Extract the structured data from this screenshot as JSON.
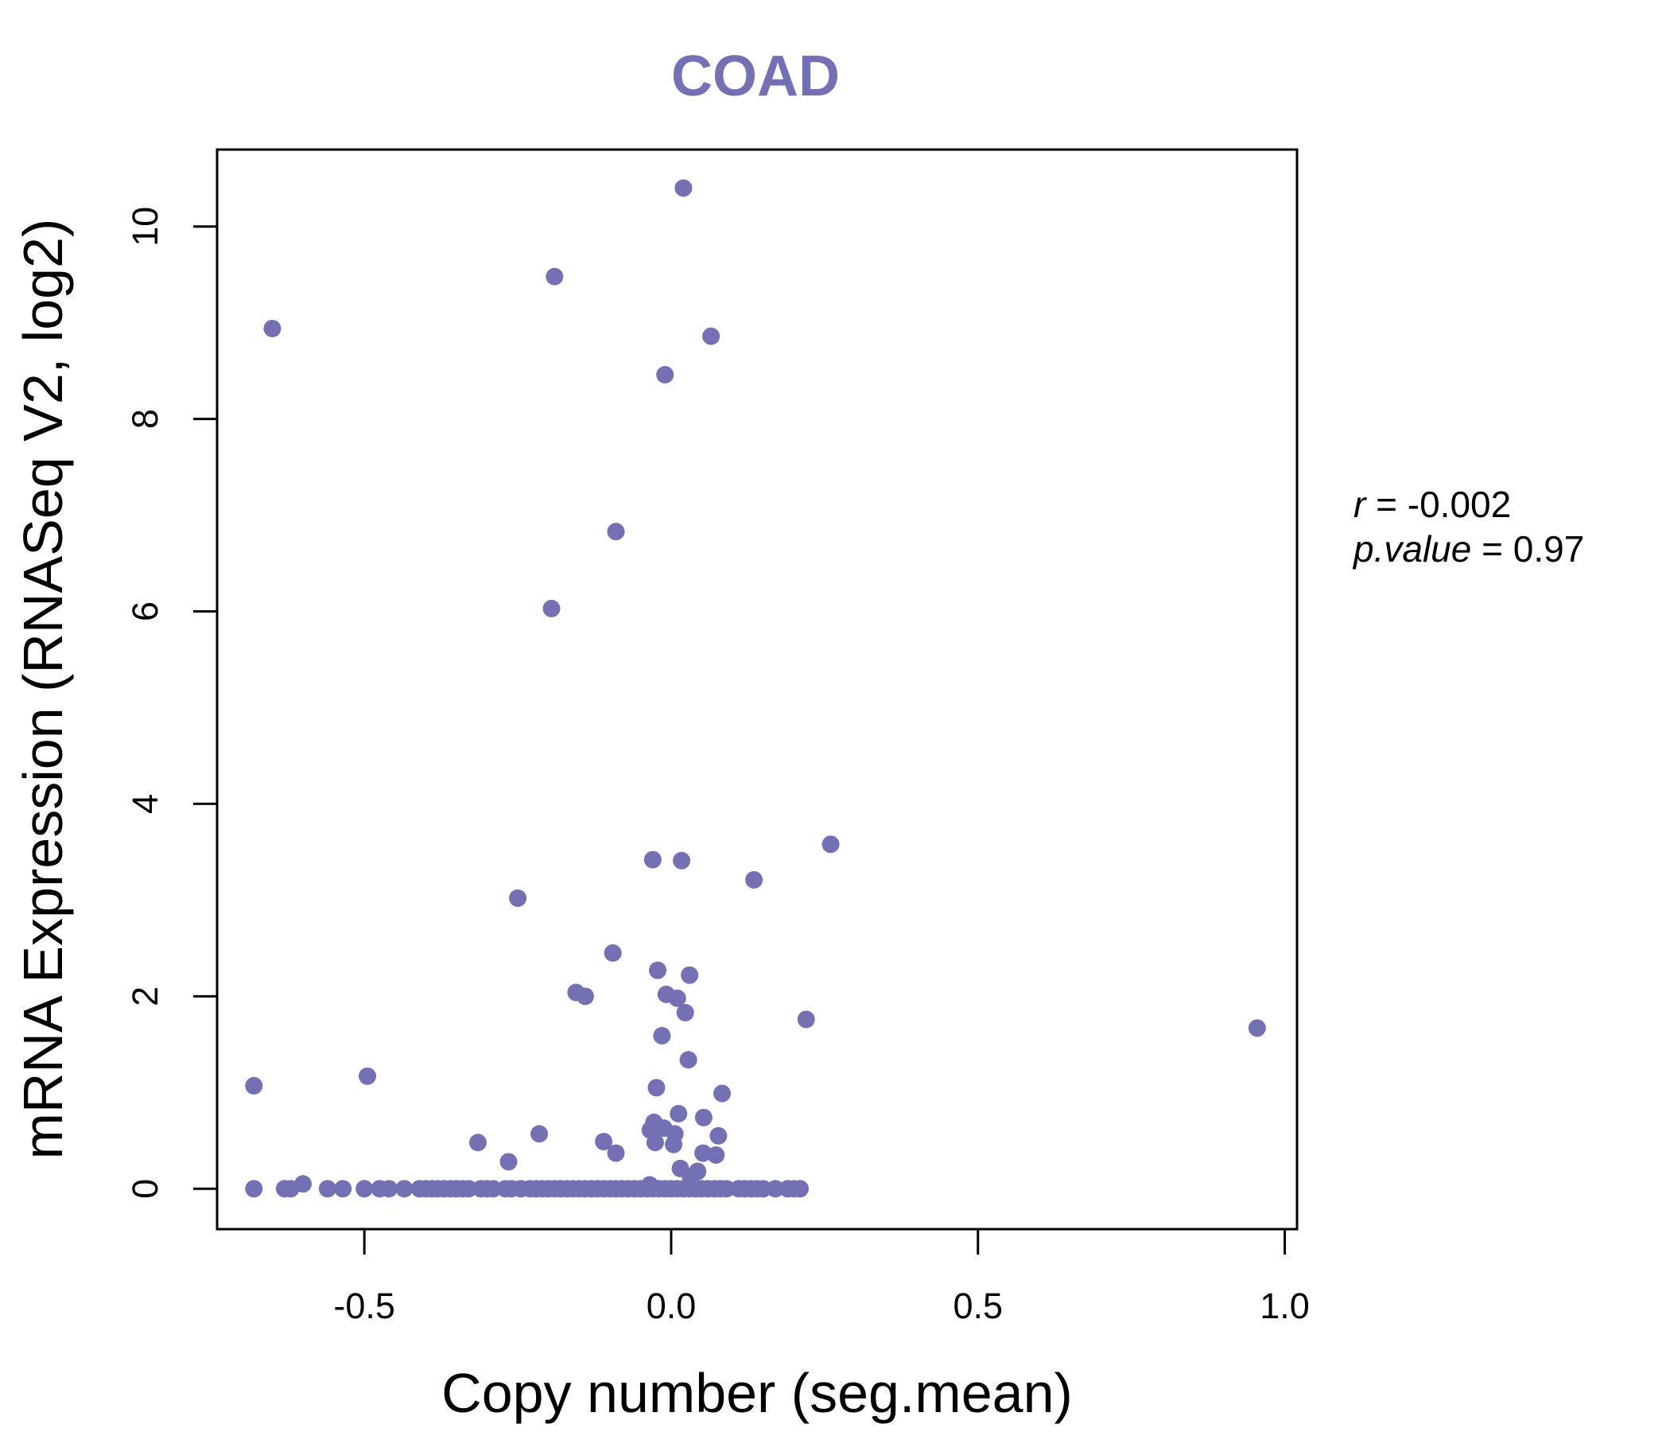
{
  "chart_data": {
    "type": "scatter",
    "title": "COAD",
    "xlabel": "Copy number (seg.mean)",
    "ylabel": "mRNA Expression (RNASeq V2, log2)",
    "xlim": [
      -0.74,
      1.02
    ],
    "ylim": [
      -0.42,
      10.8
    ],
    "x_ticks": [
      -0.5,
      0.0,
      0.5,
      1.0
    ],
    "x_tick_labels": [
      "-0.5",
      "0.0",
      "0.5",
      "1.0"
    ],
    "y_ticks": [
      0,
      2,
      4,
      6,
      8,
      10
    ],
    "y_tick_labels": [
      "0",
      "2",
      "4",
      "6",
      "8",
      "10"
    ],
    "point_color": "#7470b4",
    "stats": {
      "r_label": "r",
      "r_value": "-0.002",
      "p_label": "p.value",
      "p_value": "0.97"
    },
    "points": [
      {
        "x": 0.02,
        "y": 10.4
      },
      {
        "x": -0.19,
        "y": 9.48
      },
      {
        "x": -0.65,
        "y": 8.94
      },
      {
        "x": 0.065,
        "y": 8.86
      },
      {
        "x": -0.01,
        "y": 8.46
      },
      {
        "x": -0.09,
        "y": 6.83
      },
      {
        "x": -0.195,
        "y": 6.03
      },
      {
        "x": 0.26,
        "y": 3.58
      },
      {
        "x": -0.03,
        "y": 3.42
      },
      {
        "x": 0.017,
        "y": 3.41
      },
      {
        "x": 0.135,
        "y": 3.21
      },
      {
        "x": -0.25,
        "y": 3.02
      },
      {
        "x": -0.095,
        "y": 2.45
      },
      {
        "x": -0.022,
        "y": 2.27
      },
      {
        "x": 0.03,
        "y": 2.22
      },
      {
        "x": -0.155,
        "y": 2.04
      },
      {
        "x": -0.14,
        "y": 2.0
      },
      {
        "x": -0.008,
        "y": 2.02
      },
      {
        "x": 0.01,
        "y": 1.98
      },
      {
        "x": 0.023,
        "y": 1.83
      },
      {
        "x": 0.22,
        "y": 1.76
      },
      {
        "x": 0.955,
        "y": 1.67
      },
      {
        "x": -0.015,
        "y": 1.59
      },
      {
        "x": 0.028,
        "y": 1.34
      },
      {
        "x": -0.68,
        "y": 1.07
      },
      {
        "x": -0.495,
        "y": 1.17
      },
      {
        "x": -0.024,
        "y": 1.05
      },
      {
        "x": 0.083,
        "y": 0.99
      },
      {
        "x": 0.012,
        "y": 0.78
      },
      {
        "x": 0.053,
        "y": 0.74
      },
      {
        "x": -0.028,
        "y": 0.69
      },
      {
        "x": -0.034,
        "y": 0.61
      },
      {
        "x": -0.012,
        "y": 0.63
      },
      {
        "x": 0.006,
        "y": 0.57
      },
      {
        "x": 0.077,
        "y": 0.55
      },
      {
        "x": -0.215,
        "y": 0.57
      },
      {
        "x": -0.315,
        "y": 0.48
      },
      {
        "x": -0.11,
        "y": 0.49
      },
      {
        "x": -0.026,
        "y": 0.48
      },
      {
        "x": 0.004,
        "y": 0.46
      },
      {
        "x": -0.09,
        "y": 0.37
      },
      {
        "x": 0.052,
        "y": 0.37
      },
      {
        "x": 0.073,
        "y": 0.35
      },
      {
        "x": -0.265,
        "y": 0.28
      },
      {
        "x": 0.015,
        "y": 0.21
      },
      {
        "x": 0.043,
        "y": 0.18
      },
      {
        "x": -0.6,
        "y": 0.05
      },
      {
        "x": 0.032,
        "y": 0.12
      },
      {
        "x": -0.68,
        "y": 0
      },
      {
        "x": -0.63,
        "y": 0
      },
      {
        "x": -0.62,
        "y": 0
      },
      {
        "x": -0.56,
        "y": 0
      },
      {
        "x": -0.535,
        "y": 0
      },
      {
        "x": -0.5,
        "y": 0
      },
      {
        "x": -0.475,
        "y": 0
      },
      {
        "x": -0.46,
        "y": 0
      },
      {
        "x": -0.435,
        "y": 0
      },
      {
        "x": -0.41,
        "y": 0
      },
      {
        "x": -0.4,
        "y": 0
      },
      {
        "x": -0.39,
        "y": 0
      },
      {
        "x": -0.38,
        "y": 0
      },
      {
        "x": -0.37,
        "y": 0
      },
      {
        "x": -0.36,
        "y": 0
      },
      {
        "x": -0.35,
        "y": 0
      },
      {
        "x": -0.34,
        "y": 0
      },
      {
        "x": -0.33,
        "y": 0
      },
      {
        "x": -0.31,
        "y": 0
      },
      {
        "x": -0.3,
        "y": 0
      },
      {
        "x": -0.29,
        "y": 0
      },
      {
        "x": -0.27,
        "y": 0
      },
      {
        "x": -0.26,
        "y": 0
      },
      {
        "x": -0.245,
        "y": 0
      },
      {
        "x": -0.23,
        "y": 0
      },
      {
        "x": -0.22,
        "y": 0
      },
      {
        "x": -0.21,
        "y": 0
      },
      {
        "x": -0.2,
        "y": 0
      },
      {
        "x": -0.19,
        "y": 0
      },
      {
        "x": -0.18,
        "y": 0
      },
      {
        "x": -0.17,
        "y": 0
      },
      {
        "x": -0.16,
        "y": 0
      },
      {
        "x": -0.15,
        "y": 0
      },
      {
        "x": -0.14,
        "y": 0
      },
      {
        "x": -0.13,
        "y": 0
      },
      {
        "x": -0.12,
        "y": 0
      },
      {
        "x": -0.11,
        "y": 0
      },
      {
        "x": -0.1,
        "y": 0
      },
      {
        "x": -0.09,
        "y": 0
      },
      {
        "x": -0.08,
        "y": 0
      },
      {
        "x": -0.07,
        "y": 0
      },
      {
        "x": -0.06,
        "y": 0
      },
      {
        "x": -0.05,
        "y": 0
      },
      {
        "x": -0.04,
        "y": 0
      },
      {
        "x": -0.03,
        "y": 0
      },
      {
        "x": -0.02,
        "y": 0
      },
      {
        "x": -0.01,
        "y": 0
      },
      {
        "x": 0.0,
        "y": 0
      },
      {
        "x": 0.01,
        "y": 0
      },
      {
        "x": 0.02,
        "y": 0
      },
      {
        "x": 0.03,
        "y": 0
      },
      {
        "x": 0.04,
        "y": 0
      },
      {
        "x": 0.05,
        "y": 0
      },
      {
        "x": 0.06,
        "y": 0
      },
      {
        "x": 0.07,
        "y": 0
      },
      {
        "x": 0.08,
        "y": 0
      },
      {
        "x": 0.09,
        "y": 0
      },
      {
        "x": 0.11,
        "y": 0
      },
      {
        "x": 0.12,
        "y": 0
      },
      {
        "x": 0.13,
        "y": 0
      },
      {
        "x": 0.14,
        "y": 0
      },
      {
        "x": 0.15,
        "y": 0
      },
      {
        "x": 0.17,
        "y": 0
      },
      {
        "x": 0.19,
        "y": 0
      },
      {
        "x": 0.2,
        "y": 0
      },
      {
        "x": 0.21,
        "y": 0
      },
      {
        "x": -0.035,
        "y": 0.04
      }
    ]
  }
}
